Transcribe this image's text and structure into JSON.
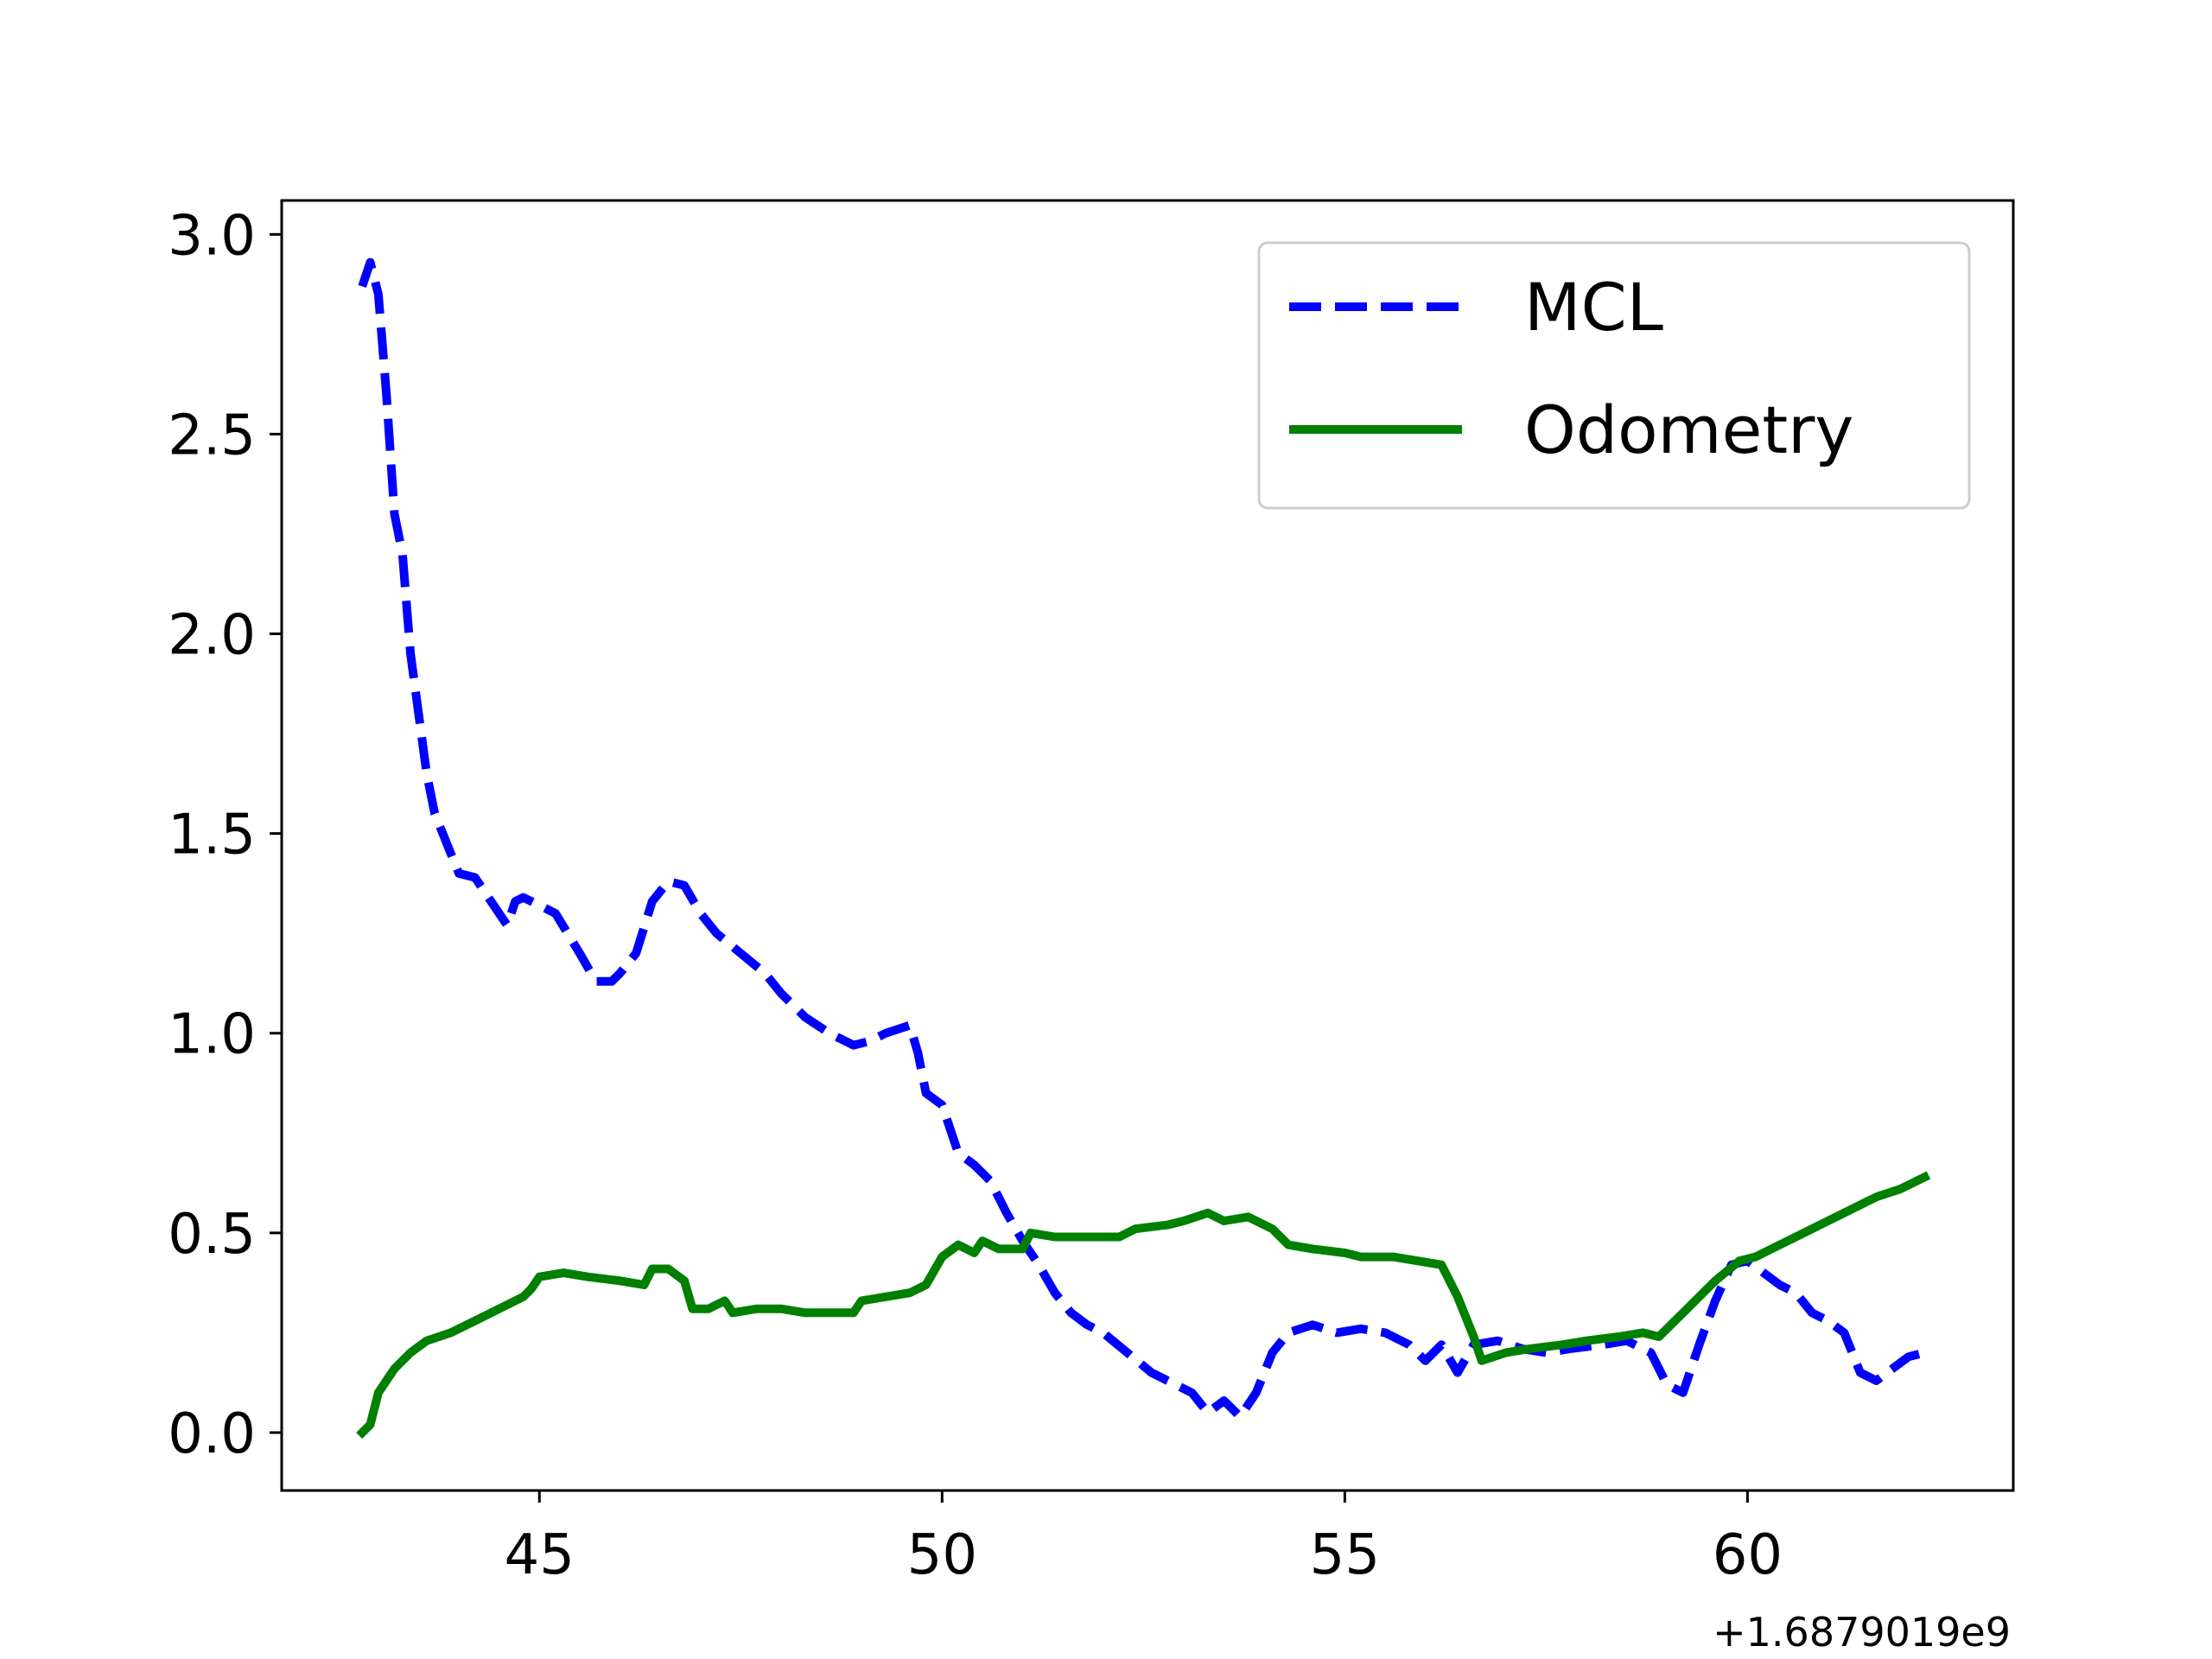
{
  "chart_data": {
    "type": "line",
    "title": "",
    "xlabel": "",
    "ylabel": "",
    "x_offset_label": "+1.6879019e9",
    "xlim": [
      41.8,
      63.3
    ],
    "ylim": [
      -0.145,
      3.085
    ],
    "x_ticks": [
      45,
      50,
      55,
      60
    ],
    "y_ticks": [
      0.0,
      0.5,
      1.0,
      1.5,
      2.0,
      2.5,
      3.0
    ],
    "x_tick_labels": [
      "45",
      "50",
      "55",
      "60"
    ],
    "y_tick_labels": [
      "0.0",
      "0.5",
      "1.0",
      "1.5",
      "2.0",
      "2.5",
      "3.0"
    ],
    "grid": false,
    "legend_position": "top-right",
    "series": [
      {
        "name": "MCL",
        "color": "#0000ff",
        "style": "dashed",
        "points": [
          [
            42.8,
            2.87
          ],
          [
            42.9,
            2.93
          ],
          [
            43.0,
            2.85
          ],
          [
            43.1,
            2.6
          ],
          [
            43.2,
            2.3
          ],
          [
            43.3,
            2.2
          ],
          [
            43.4,
            1.95
          ],
          [
            43.6,
            1.65
          ],
          [
            43.7,
            1.55
          ],
          [
            43.9,
            1.45
          ],
          [
            44.0,
            1.4
          ],
          [
            44.2,
            1.39
          ],
          [
            44.4,
            1.33
          ],
          [
            44.6,
            1.27
          ],
          [
            44.7,
            1.33
          ],
          [
            44.8,
            1.34
          ],
          [
            45.0,
            1.32
          ],
          [
            45.2,
            1.3
          ],
          [
            45.5,
            1.2
          ],
          [
            45.7,
            1.13
          ],
          [
            45.9,
            1.13
          ],
          [
            46.0,
            1.15
          ],
          [
            46.2,
            1.2
          ],
          [
            46.4,
            1.33
          ],
          [
            46.6,
            1.38
          ],
          [
            46.8,
            1.37
          ],
          [
            47.0,
            1.3
          ],
          [
            47.2,
            1.25
          ],
          [
            47.5,
            1.2
          ],
          [
            47.8,
            1.15
          ],
          [
            48.0,
            1.1
          ],
          [
            48.3,
            1.04
          ],
          [
            48.6,
            1.0
          ],
          [
            48.9,
            0.97
          ],
          [
            49.1,
            0.98
          ],
          [
            49.3,
            1.0
          ],
          [
            49.6,
            1.02
          ],
          [
            49.7,
            0.95
          ],
          [
            49.8,
            0.85
          ],
          [
            50.0,
            0.82
          ],
          [
            50.2,
            0.7
          ],
          [
            50.4,
            0.67
          ],
          [
            50.6,
            0.63
          ],
          [
            50.8,
            0.55
          ],
          [
            51.0,
            0.48
          ],
          [
            51.2,
            0.42
          ],
          [
            51.4,
            0.35
          ],
          [
            51.6,
            0.3
          ],
          [
            51.8,
            0.27
          ],
          [
            52.0,
            0.25
          ],
          [
            52.3,
            0.2
          ],
          [
            52.6,
            0.15
          ],
          [
            52.9,
            0.12
          ],
          [
            53.1,
            0.1
          ],
          [
            53.3,
            0.05
          ],
          [
            53.5,
            0.08
          ],
          [
            53.7,
            0.04
          ],
          [
            53.9,
            0.1
          ],
          [
            54.1,
            0.2
          ],
          [
            54.3,
            0.25
          ],
          [
            54.6,
            0.27
          ],
          [
            54.9,
            0.25
          ],
          [
            55.2,
            0.26
          ],
          [
            55.5,
            0.25
          ],
          [
            55.8,
            0.22
          ],
          [
            56.0,
            0.18
          ],
          [
            56.2,
            0.22
          ],
          [
            56.4,
            0.15
          ],
          [
            56.6,
            0.22
          ],
          [
            56.9,
            0.23
          ],
          [
            57.2,
            0.21
          ],
          [
            57.5,
            0.2
          ],
          [
            57.8,
            0.21
          ],
          [
            58.2,
            0.22
          ],
          [
            58.5,
            0.23
          ],
          [
            58.8,
            0.2
          ],
          [
            59.0,
            0.12
          ],
          [
            59.2,
            0.1
          ],
          [
            59.4,
            0.22
          ],
          [
            59.6,
            0.33
          ],
          [
            59.8,
            0.42
          ],
          [
            60.0,
            0.43
          ],
          [
            60.2,
            0.4
          ],
          [
            60.4,
            0.37
          ],
          [
            60.6,
            0.35
          ],
          [
            60.8,
            0.3
          ],
          [
            61.0,
            0.28
          ],
          [
            61.2,
            0.25
          ],
          [
            61.4,
            0.15
          ],
          [
            61.6,
            0.13
          ],
          [
            61.8,
            0.16
          ],
          [
            62.0,
            0.19
          ],
          [
            62.2,
            0.2
          ]
        ]
      },
      {
        "name": "Odometry",
        "color": "#008000",
        "style": "solid",
        "points": [
          [
            42.8,
            0.0
          ],
          [
            42.9,
            0.02
          ],
          [
            43.0,
            0.1
          ],
          [
            43.2,
            0.16
          ],
          [
            43.4,
            0.2
          ],
          [
            43.6,
            0.23
          ],
          [
            43.9,
            0.25
          ],
          [
            44.2,
            0.28
          ],
          [
            44.5,
            0.31
          ],
          [
            44.8,
            0.34
          ],
          [
            44.9,
            0.36
          ],
          [
            45.0,
            0.39
          ],
          [
            45.3,
            0.4
          ],
          [
            45.6,
            0.39
          ],
          [
            46.0,
            0.38
          ],
          [
            46.3,
            0.37
          ],
          [
            46.4,
            0.41
          ],
          [
            46.6,
            0.41
          ],
          [
            46.8,
            0.38
          ],
          [
            46.9,
            0.31
          ],
          [
            47.1,
            0.31
          ],
          [
            47.3,
            0.33
          ],
          [
            47.4,
            0.3
          ],
          [
            47.7,
            0.31
          ],
          [
            48.0,
            0.31
          ],
          [
            48.3,
            0.3
          ],
          [
            48.6,
            0.3
          ],
          [
            48.9,
            0.3
          ],
          [
            49.0,
            0.33
          ],
          [
            49.3,
            0.34
          ],
          [
            49.6,
            0.35
          ],
          [
            49.8,
            0.37
          ],
          [
            50.0,
            0.44
          ],
          [
            50.2,
            0.47
          ],
          [
            50.4,
            0.45
          ],
          [
            50.5,
            0.48
          ],
          [
            50.7,
            0.46
          ],
          [
            51.0,
            0.46
          ],
          [
            51.1,
            0.5
          ],
          [
            51.4,
            0.49
          ],
          [
            51.8,
            0.49
          ],
          [
            52.2,
            0.49
          ],
          [
            52.4,
            0.51
          ],
          [
            52.8,
            0.52
          ],
          [
            53.0,
            0.53
          ],
          [
            53.3,
            0.55
          ],
          [
            53.5,
            0.53
          ],
          [
            53.8,
            0.54
          ],
          [
            54.1,
            0.51
          ],
          [
            54.3,
            0.47
          ],
          [
            54.6,
            0.46
          ],
          [
            55.0,
            0.45
          ],
          [
            55.2,
            0.44
          ],
          [
            55.6,
            0.44
          ],
          [
            55.9,
            0.43
          ],
          [
            56.2,
            0.42
          ],
          [
            56.4,
            0.34
          ],
          [
            56.6,
            0.24
          ],
          [
            56.7,
            0.18
          ],
          [
            57.0,
            0.2
          ],
          [
            57.3,
            0.21
          ],
          [
            57.7,
            0.22
          ],
          [
            58.0,
            0.23
          ],
          [
            58.4,
            0.24
          ],
          [
            58.7,
            0.25
          ],
          [
            58.9,
            0.24
          ],
          [
            59.1,
            0.28
          ],
          [
            59.4,
            0.34
          ],
          [
            59.6,
            0.38
          ],
          [
            59.9,
            0.43
          ],
          [
            60.1,
            0.44
          ],
          [
            60.4,
            0.47
          ],
          [
            60.7,
            0.5
          ],
          [
            61.0,
            0.53
          ],
          [
            61.3,
            0.56
          ],
          [
            61.6,
            0.59
          ],
          [
            61.9,
            0.61
          ],
          [
            62.2,
            0.64
          ]
        ]
      }
    ]
  }
}
